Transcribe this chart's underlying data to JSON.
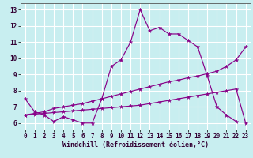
{
  "background_color": "#c8eef0",
  "grid_color": "#ffffff",
  "line_color": "#880088",
  "xlabel": "Windchill (Refroidissement éolien,°C)",
  "xlim": [
    -0.5,
    23.5
  ],
  "ylim": [
    5.6,
    13.4
  ],
  "yticks": [
    6,
    7,
    8,
    9,
    10,
    11,
    12,
    13
  ],
  "xticks": [
    0,
    1,
    2,
    3,
    4,
    5,
    6,
    7,
    8,
    9,
    10,
    11,
    12,
    13,
    14,
    15,
    16,
    17,
    18,
    19,
    20,
    21,
    22,
    23
  ],
  "line1_x": [
    0,
    1,
    2,
    3,
    4,
    5,
    6,
    7,
    8,
    9,
    10,
    11,
    12,
    13,
    14,
    15,
    16,
    17,
    18,
    19,
    20,
    21,
    22
  ],
  "line1_y": [
    7.5,
    6.7,
    6.5,
    6.1,
    6.4,
    6.2,
    6.0,
    6.0,
    7.5,
    9.5,
    9.9,
    11.0,
    13.0,
    11.7,
    11.9,
    11.5,
    11.5,
    11.1,
    10.7,
    8.9,
    7.0,
    6.5,
    6.1
  ],
  "line2_x": [
    0,
    1,
    2,
    3,
    4,
    5,
    6,
    7,
    8,
    9,
    10,
    11,
    12,
    13,
    14,
    15,
    16,
    17,
    18,
    19,
    20,
    21,
    22,
    23
  ],
  "line2_y": [
    6.5,
    6.6,
    6.7,
    6.9,
    7.0,
    7.1,
    7.2,
    7.35,
    7.5,
    7.65,
    7.8,
    7.95,
    8.1,
    8.25,
    8.4,
    8.55,
    8.65,
    8.8,
    8.9,
    9.05,
    9.2,
    9.5,
    9.9,
    10.7
  ],
  "line3_x": [
    0,
    1,
    2,
    3,
    4,
    5,
    6,
    7,
    8,
    9,
    10,
    11,
    12,
    13,
    14,
    15,
    16,
    17,
    18,
    19,
    20,
    21,
    22,
    23
  ],
  "line3_y": [
    6.5,
    6.55,
    6.6,
    6.65,
    6.7,
    6.75,
    6.8,
    6.85,
    6.9,
    6.95,
    7.0,
    7.05,
    7.1,
    7.2,
    7.3,
    7.4,
    7.5,
    7.6,
    7.7,
    7.8,
    7.9,
    8.0,
    8.1,
    6.0
  ]
}
